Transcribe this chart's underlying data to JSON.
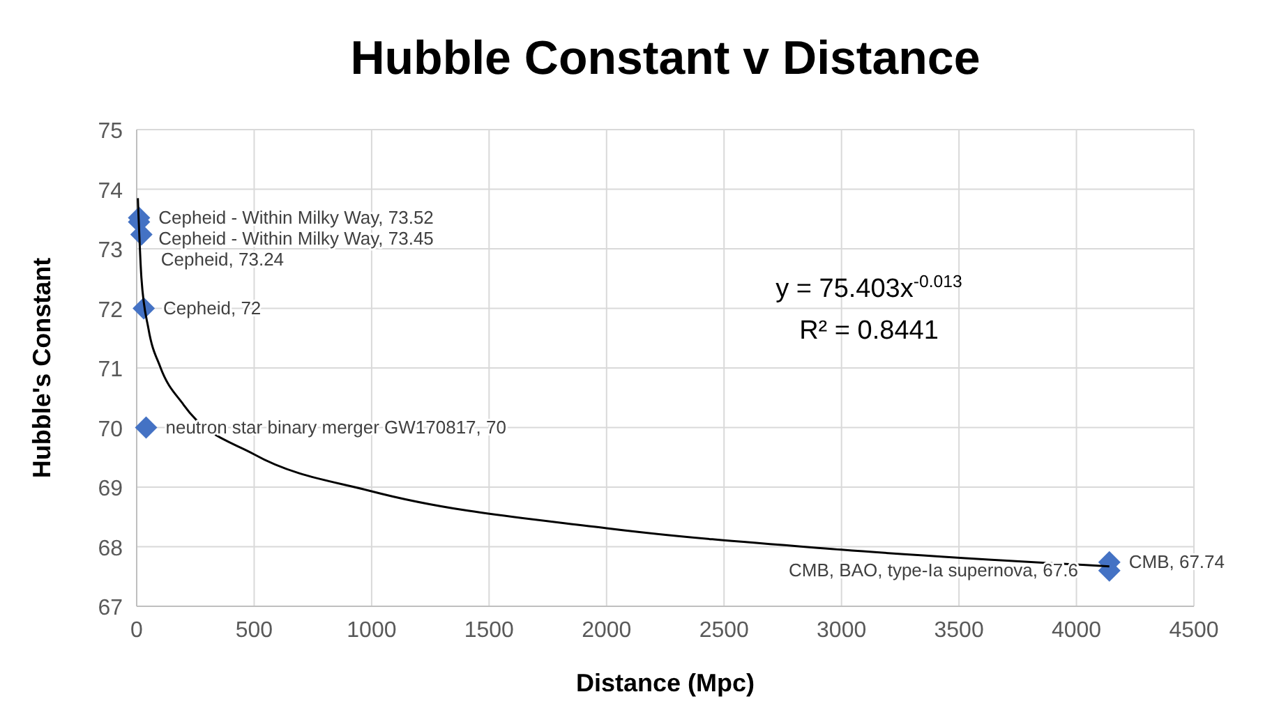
{
  "chart_data": {
    "type": "scatter",
    "title": "Hubble Constant v Distance",
    "xlabel": "Distance (Mpc)",
    "ylabel": "Hubble's Constant",
    "xlim": [
      0,
      4500
    ],
    "xticks": [
      0,
      500,
      1000,
      1500,
      2000,
      2500,
      3000,
      3500,
      4000,
      4500
    ],
    "ylim": [
      67,
      75
    ],
    "yticks": [
      67,
      68,
      69,
      70,
      71,
      72,
      73,
      74,
      75
    ],
    "grid": true,
    "marker": "diamond",
    "series": [
      {
        "color": "#4472c4",
        "x": [
          10,
          10,
          20,
          30,
          40,
          4140,
          4140
        ],
        "values": [
          73.52,
          73.45,
          73.24,
          72,
          70,
          67.74,
          67.6
        ],
        "value_labels": [
          "Cepheid - Within Milky Way, 73.52",
          "Cepheid - Within Milky Way, 73.45",
          "Cepheid, 73.24",
          "Cepheid, 72",
          "neutron star binary merger GW170817, 70",
          "CMB, 67.74",
          "CMB, BAO, type-Ia supernova, 67.6"
        ]
      },
      {
        "type": "line",
        "color": "#000000",
        "marker": "none",
        "x": [
          5,
          20,
          50,
          100,
          200,
          500,
          1000,
          2000,
          3000,
          4140
        ],
        "values": [
          73.85,
          72.52,
          71.66,
          71.02,
          70.38,
          69.55,
          68.93,
          68.31,
          67.95,
          67.67
        ]
      }
    ],
    "annotations": [
      "y = 75.403x$^{-0.013}$",
      "R² = 0.8441"
    ]
  }
}
